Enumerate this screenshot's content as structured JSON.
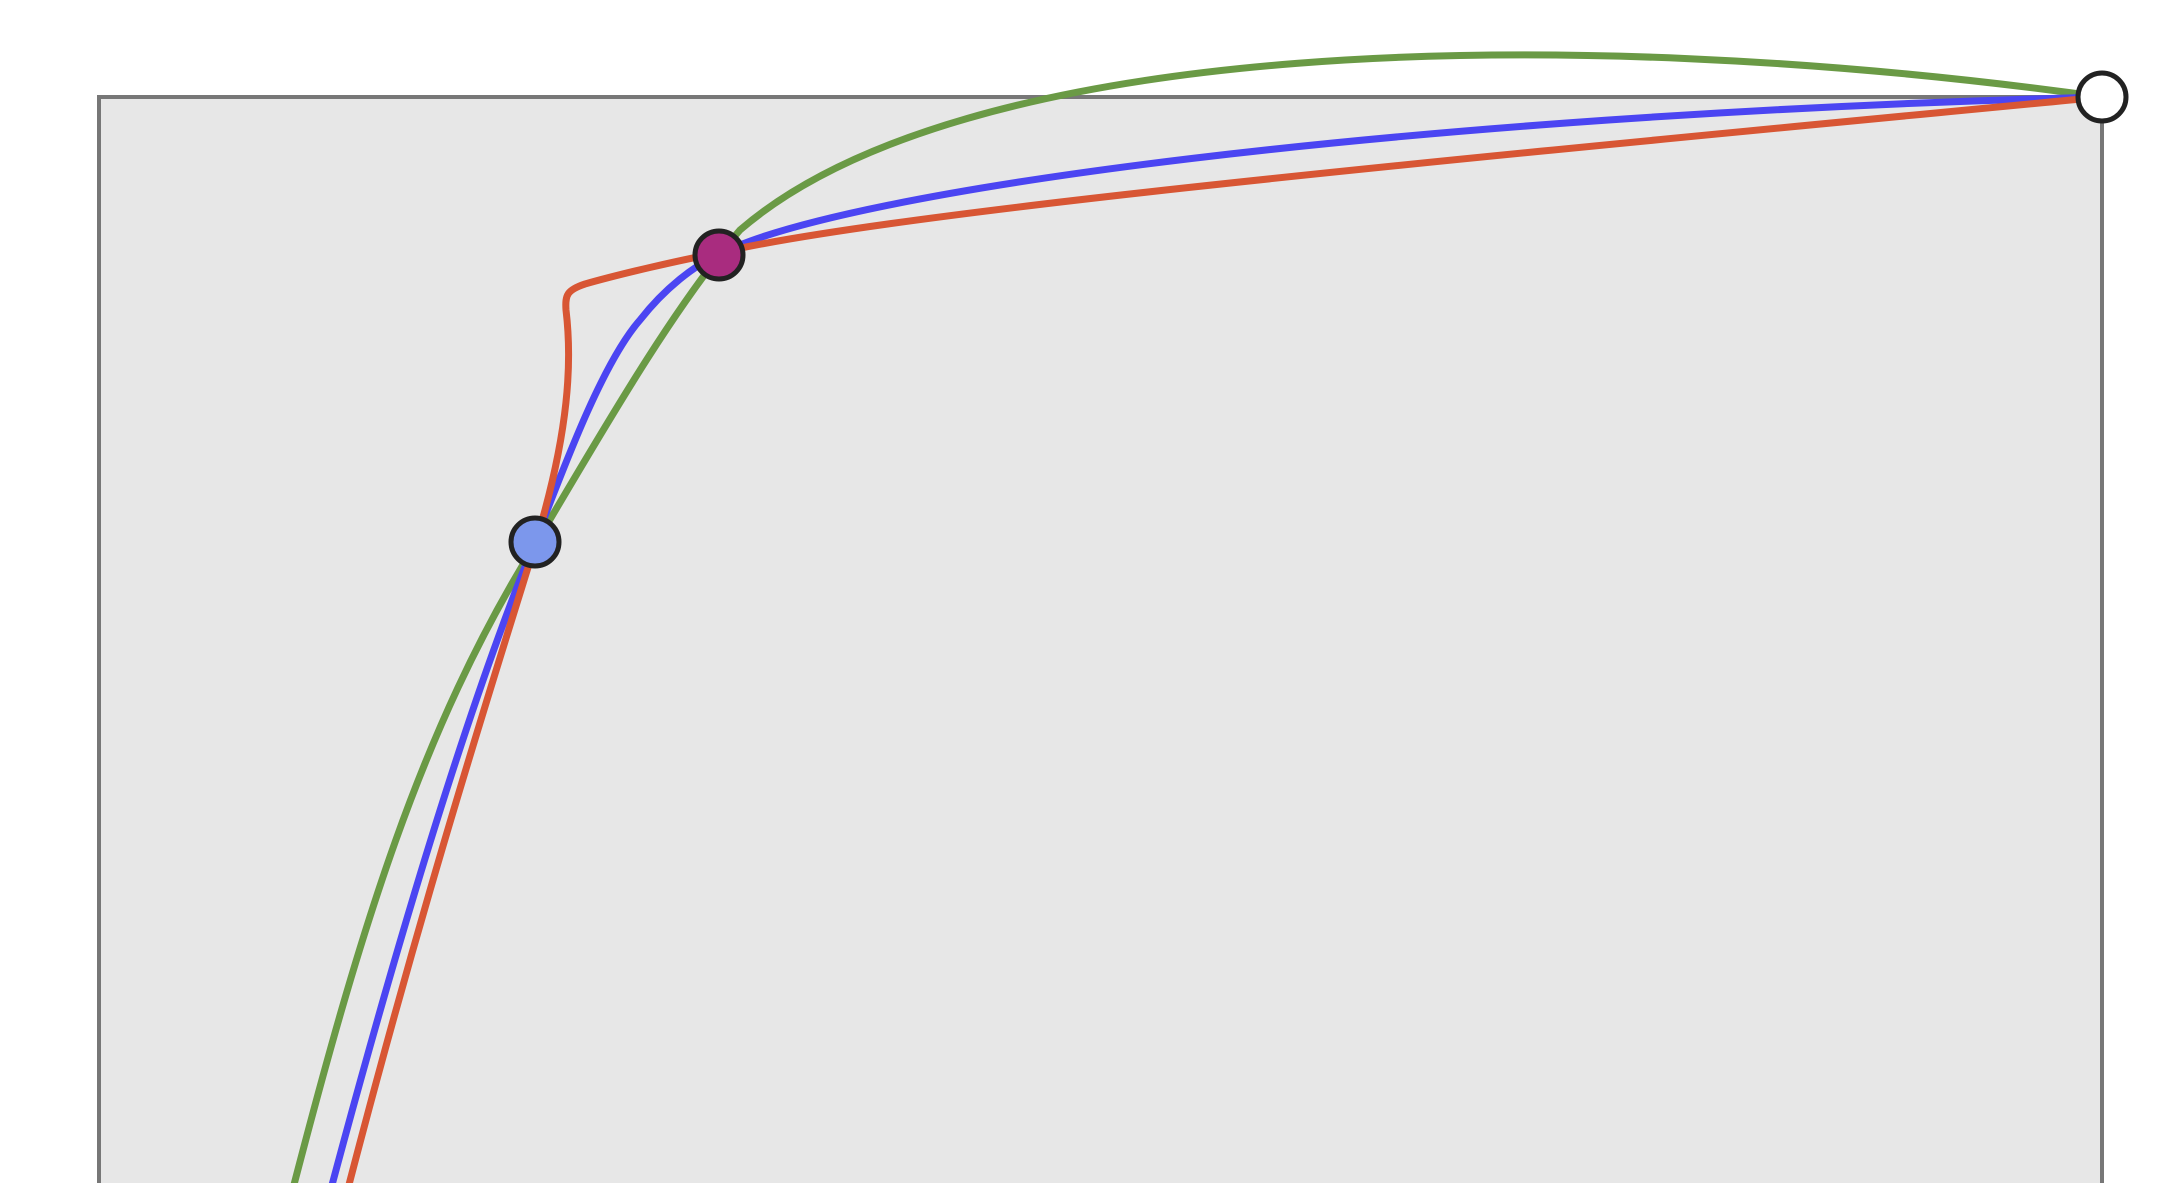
{
  "colors": {
    "background": "#ffffff",
    "frame_fill": "#e7e7e7",
    "frame_stroke": "#777777",
    "curve_green": "#6a9a45",
    "curve_blue": "#4b45f2",
    "curve_orange": "#d85634",
    "handle_outline": "#222222",
    "handle_end": "#ffffff",
    "handle_mid": "#a92c7f",
    "handle_start": "#7c97ec"
  },
  "curves": [
    {
      "name": "green-curve",
      "color_key": "curve_green"
    },
    {
      "name": "blue-curve",
      "color_key": "curve_blue"
    },
    {
      "name": "orange-curve",
      "color_key": "curve_orange"
    }
  ],
  "handles": [
    {
      "name": "end-point-handle",
      "color_key": "handle_end"
    },
    {
      "name": "mid-point-handle",
      "color_key": "handle_mid"
    },
    {
      "name": "start-point-handle",
      "color_key": "handle_start"
    }
  ]
}
